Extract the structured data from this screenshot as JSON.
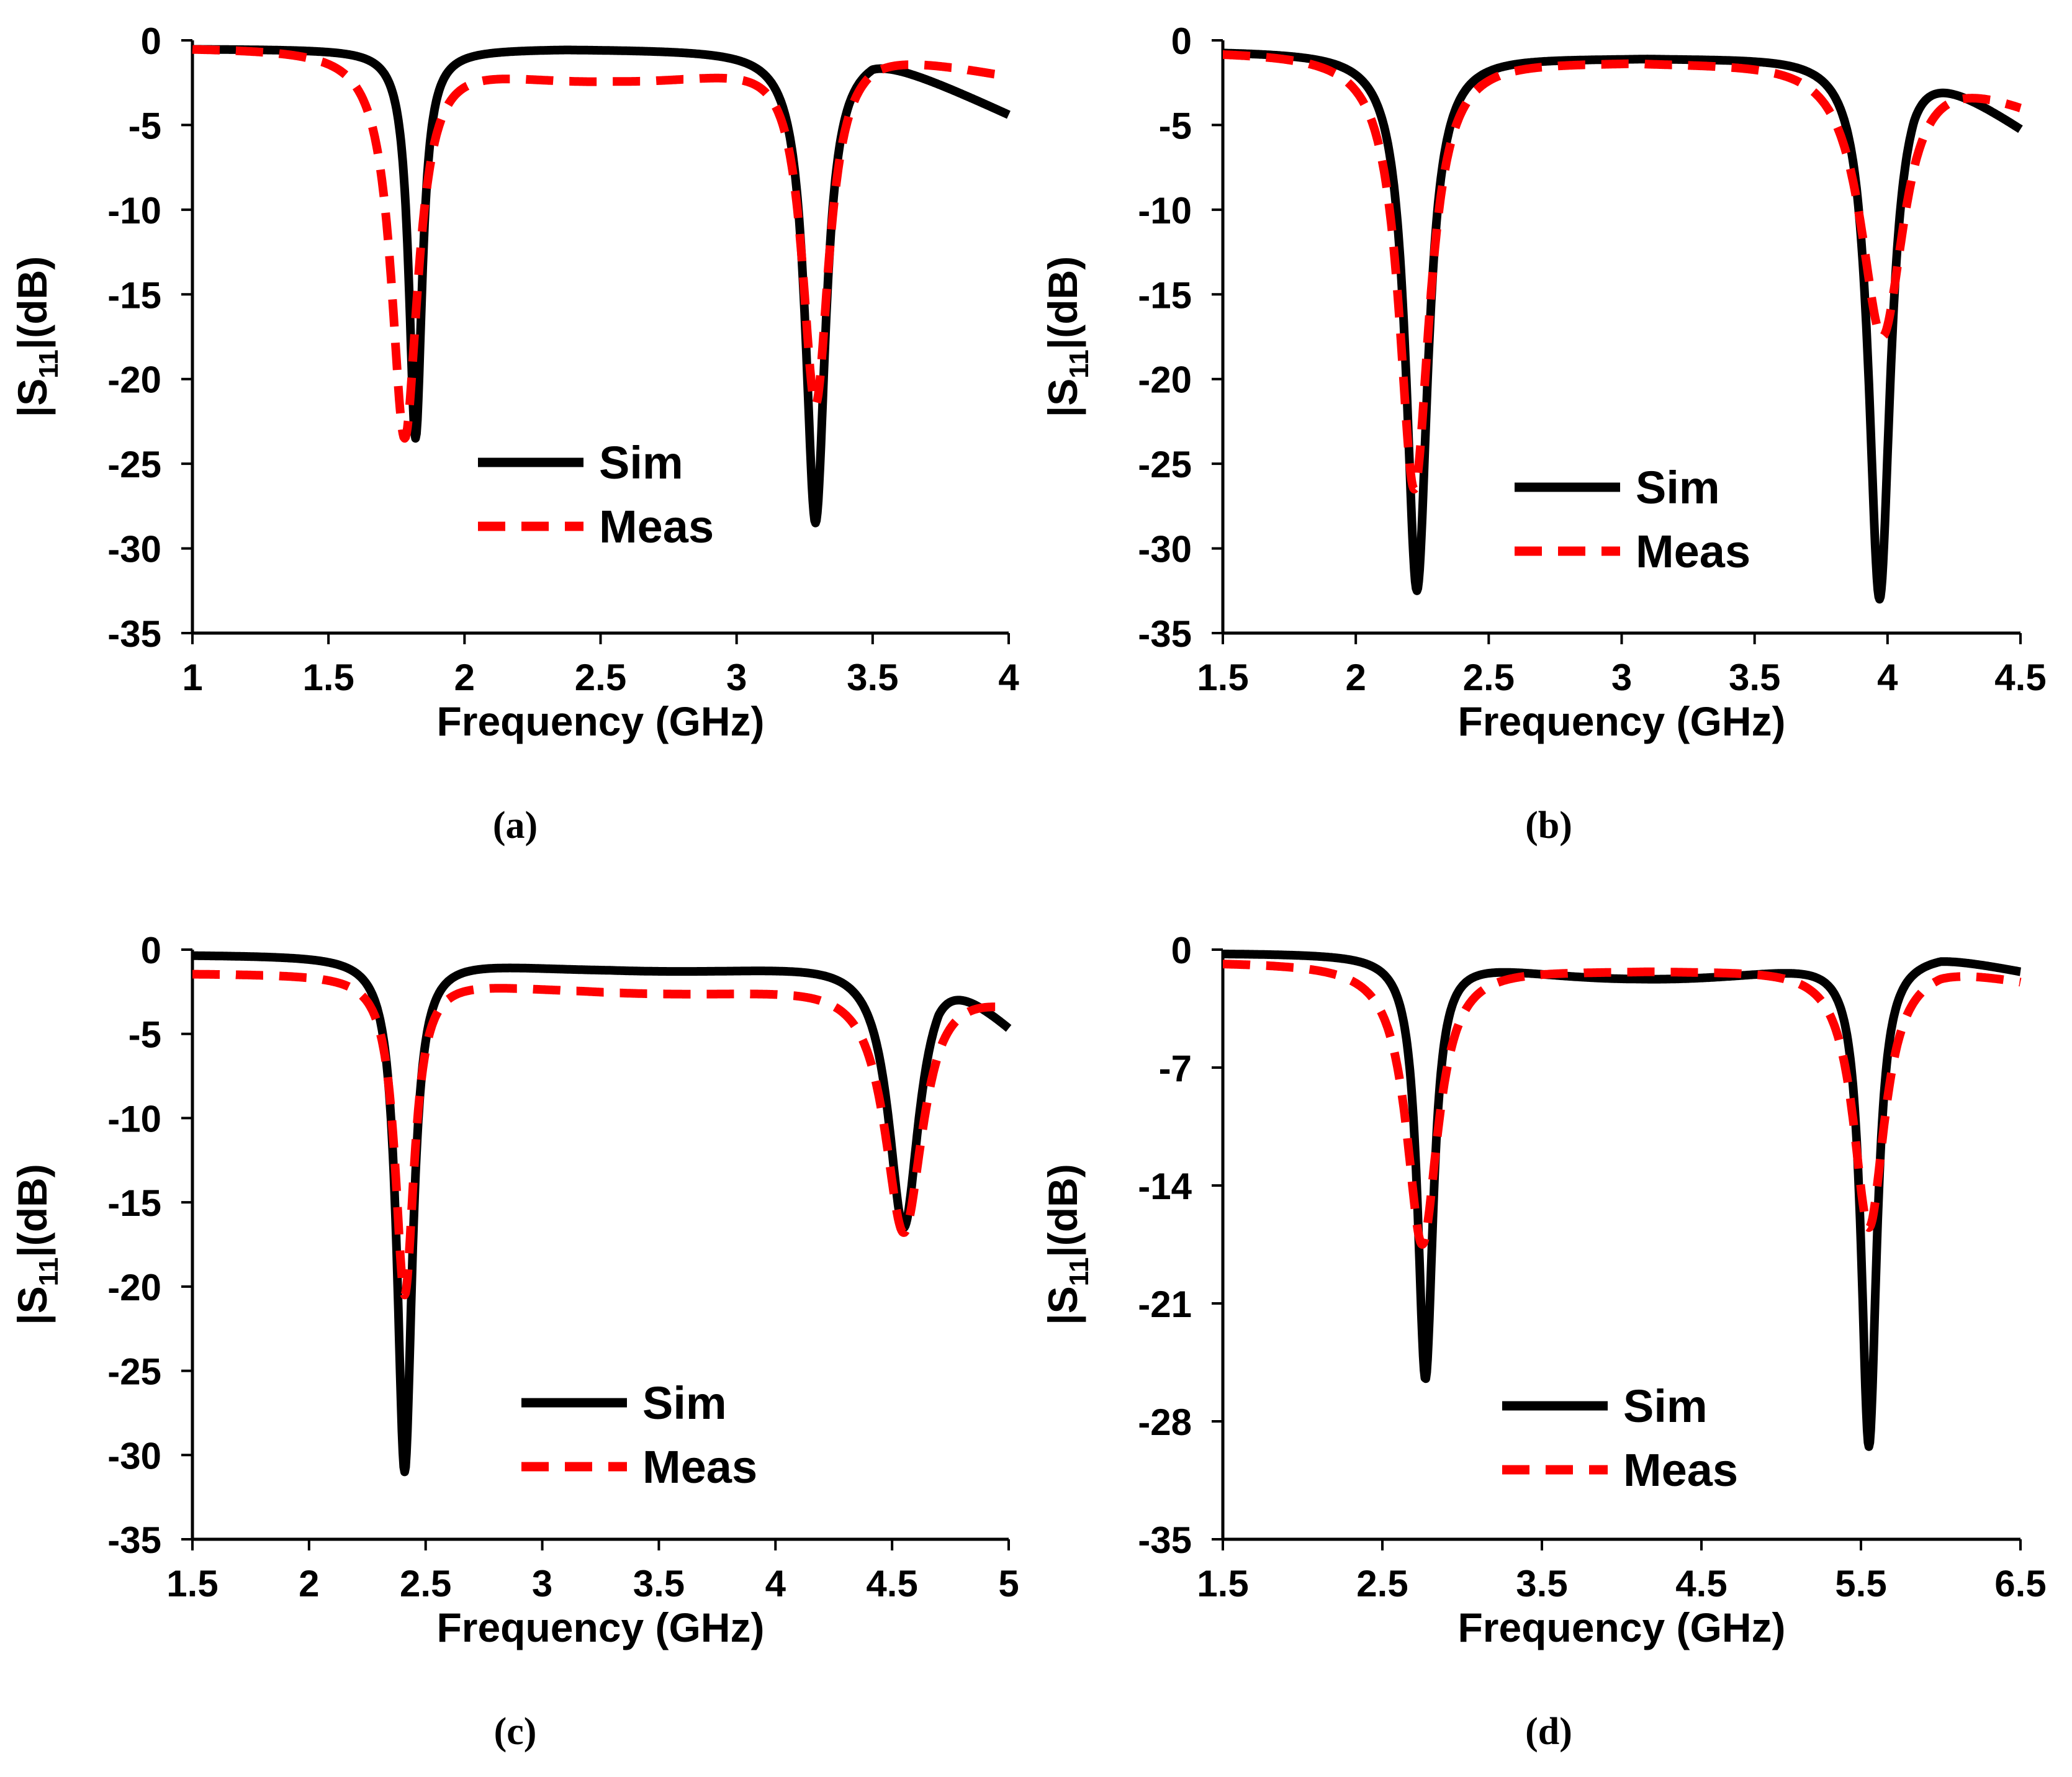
{
  "chart_data": [
    {
      "type": "line",
      "panel_label": "(a)",
      "xlabel": "Frequency (GHz)",
      "ylabel_prefix": "|S",
      "ylabel_sub": "11",
      "ylabel_suffix": "|(dB)",
      "xlim": [
        1,
        4
      ],
      "ylim": [
        -35,
        0
      ],
      "xticks": [
        1,
        1.5,
        2,
        2.5,
        3,
        3.5,
        4
      ],
      "yticks": [
        0,
        -5,
        -10,
        -15,
        -20,
        -25,
        -30,
        -35
      ],
      "xtick_labels": [
        "1",
        "1.5",
        "2",
        "2.5",
        "3",
        "3.5",
        "4"
      ],
      "ytick_labels": [
        "0",
        "-5",
        "-10",
        "-15",
        "-20",
        "-25",
        "-30",
        "-35"
      ],
      "legend": [
        "Sim",
        "Meas"
      ],
      "legend_position": "center-right",
      "series": [
        {
          "name": "Sim",
          "baseline": -0.5,
          "resonances": [
            {
              "f0": 1.82,
              "depth": -23.5,
              "w": 0.03
            },
            {
              "f0": 3.29,
              "depth": -28.5,
              "w": 0.045
            }
          ],
          "tail": {
            "start": 3.5,
            "end": 4.0,
            "end_value": -4.3
          }
        },
        {
          "name": "Meas",
          "baseline": -0.4,
          "resonances": [
            {
              "f0": 1.78,
              "depth": -23.5,
              "w": 0.06
            },
            {
              "f0": 3.29,
              "depth": -21.5,
              "w": 0.06
            }
          ],
          "mid_level": -2.3,
          "tail": {
            "start": 3.5,
            "end": 4.0,
            "end_value": -2.0
          }
        }
      ]
    },
    {
      "type": "line",
      "panel_label": "(b)",
      "xlabel": "Frequency (GHz)",
      "ylabel_prefix": "|S",
      "ylabel_sub": "11",
      "ylabel_suffix": "|(dB)",
      "xlim": [
        1.5,
        4.5
      ],
      "ylim": [
        -35,
        0
      ],
      "xticks": [
        1.5,
        2,
        2.5,
        3,
        3.5,
        4,
        4.5
      ],
      "yticks": [
        0,
        -5,
        -10,
        -15,
        -20,
        -25,
        -30,
        -35
      ],
      "xtick_labels": [
        "1.5",
        "2",
        "2.5",
        "3",
        "3.5",
        "4",
        "4.5"
      ],
      "ytick_labels": [
        "0",
        "-5",
        "-10",
        "-15",
        "-20",
        "-25",
        "-30",
        "-35"
      ],
      "legend": [
        "Sim",
        "Meas"
      ],
      "legend_position": "center",
      "series": [
        {
          "name": "Sim",
          "baseline": -0.6,
          "resonances": [
            {
              "f0": 2.23,
              "depth": -32.5,
              "w": 0.05
            },
            {
              "f0": 3.97,
              "depth": -33.0,
              "w": 0.05
            }
          ],
          "mid_level": -1.0,
          "tail": {
            "start": 4.1,
            "end": 4.5,
            "end_value": -5.0
          }
        },
        {
          "name": "Meas",
          "baseline": -0.6,
          "resonances": [
            {
              "f0": 2.22,
              "depth": -26.5,
              "w": 0.07
            },
            {
              "f0": 3.98,
              "depth": -17.5,
              "w": 0.1
            }
          ],
          "mid_level": -1.2,
          "tail": {
            "start": 4.1,
            "end": 4.5,
            "end_value": -3.5
          }
        }
      ]
    },
    {
      "type": "line",
      "panel_label": "(c)",
      "xlabel": "Frequency (GHz)",
      "ylabel_prefix": "|S",
      "ylabel_sub": "11",
      "ylabel_suffix": "|(dB)",
      "xlim": [
        1.5,
        5
      ],
      "ylim": [
        -35,
        0
      ],
      "xticks": [
        1.5,
        2,
        2.5,
        3,
        3.5,
        4,
        4.5,
        5
      ],
      "yticks": [
        0,
        -5,
        -10,
        -15,
        -20,
        -25,
        -30,
        -35
      ],
      "xtick_labels": [
        "1.5",
        "2",
        "2.5",
        "3",
        "3.5",
        "4",
        "4.5",
        "5"
      ],
      "ytick_labels": [
        "0",
        "-5",
        "-10",
        "-15",
        "-20",
        "-25",
        "-30",
        "-35"
      ],
      "legend": [
        "Sim",
        "Meas"
      ],
      "legend_position": "center-right",
      "series": [
        {
          "name": "Sim",
          "baseline": -0.3,
          "resonances": [
            {
              "f0": 2.41,
              "depth": -31.0,
              "w": 0.04
            },
            {
              "f0": 4.55,
              "depth": -16.5,
              "w": 0.08
            }
          ],
          "mid_level": -1.2,
          "tail": {
            "start": 4.7,
            "end": 5.0,
            "end_value": -4.3
          }
        },
        {
          "name": "Meas",
          "baseline": -1.4,
          "resonances": [
            {
              "f0": 2.41,
              "depth": -20.5,
              "w": 0.05
            },
            {
              "f0": 4.55,
              "depth": -16.8,
              "w": 0.1
            }
          ],
          "mid_level": -2.5,
          "tail": {
            "start": 4.7,
            "end": 5.0,
            "end_value": -2.8
          }
        }
      ]
    },
    {
      "type": "line",
      "panel_label": "(d)",
      "xlabel": "Frequency (GHz)",
      "ylabel_prefix": "|S",
      "ylabel_sub": "11",
      "ylabel_suffix": "|(dB)",
      "xlim": [
        1.5,
        6.5
      ],
      "ylim": [
        -35,
        0
      ],
      "xticks": [
        1.5,
        2.5,
        3.5,
        4.5,
        5.5,
        6.5
      ],
      "yticks": [
        0,
        -7,
        -14,
        -21,
        -28,
        -35
      ],
      "xtick_labels": [
        "1.5",
        "2.5",
        "3.5",
        "4.5",
        "5.5",
        "6.5"
      ],
      "ytick_labels": [
        "0",
        "-7",
        "-14",
        "-21",
        "-28",
        "-35"
      ],
      "legend": [
        "Sim",
        "Meas"
      ],
      "legend_position": "center-right",
      "series": [
        {
          "name": "Sim",
          "baseline": -0.2,
          "resonances": [
            {
              "f0": 2.77,
              "depth": -25.5,
              "w": 0.06
            },
            {
              "f0": 5.55,
              "depth": -29.5,
              "w": 0.06
            }
          ],
          "mid_level": -1.7,
          "tail": {
            "start": 6.0,
            "end": 6.5,
            "end_value": -1.2
          }
        },
        {
          "name": "Meas",
          "baseline": -0.7,
          "resonances": [
            {
              "f0": 2.75,
              "depth": -17.5,
              "w": 0.12
            },
            {
              "f0": 5.55,
              "depth": -16.5,
              "w": 0.12
            }
          ],
          "mid_level": -1.2,
          "tail": {
            "start": 6.0,
            "end": 6.5,
            "end_value": -1.7
          }
        }
      ]
    }
  ],
  "colors": {
    "sim": "#000000",
    "meas": "#ff0000",
    "axis": "#000000"
  }
}
